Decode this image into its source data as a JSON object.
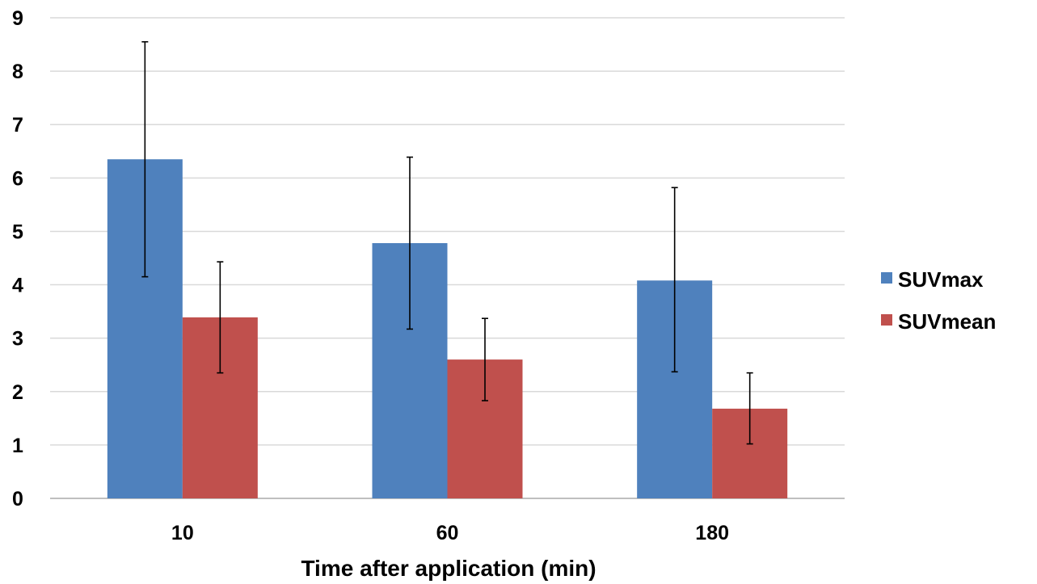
{
  "chart_data": {
    "type": "bar",
    "categories": [
      "10",
      "60",
      "180"
    ],
    "series": [
      {
        "name": "SUVmax",
        "color": "#4f81bd",
        "values": [
          6.35,
          4.78,
          4.08
        ],
        "error_low": [
          4.15,
          3.17,
          2.37
        ],
        "error_high": [
          8.55,
          6.39,
          5.82
        ]
      },
      {
        "name": "SUVmean",
        "color": "#c0504d",
        "values": [
          3.39,
          2.6,
          1.68
        ],
        "error_low": [
          2.35,
          1.83,
          1.02
        ],
        "error_high": [
          4.43,
          3.37,
          2.35
        ]
      }
    ],
    "title": "",
    "xlabel": "Time after application (min)",
    "ylabel": "",
    "ylim": [
      0,
      9
    ],
    "yticks": [
      "0",
      "1",
      "2",
      "3",
      "4",
      "5",
      "6",
      "7",
      "8",
      "9"
    ],
    "grid": true,
    "legend_position": "right"
  }
}
